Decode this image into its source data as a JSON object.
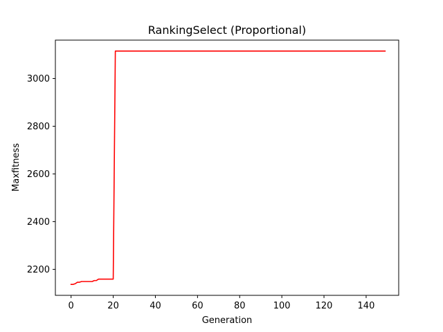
{
  "chart_data": {
    "type": "line",
    "title": "RankingSelect (Proportional)",
    "xlabel": "Generation",
    "ylabel": "Maxfitness",
    "xlim": [
      -7.45,
      155.45
    ],
    "ylim": [
      2091,
      3161
    ],
    "xticks": [
      0,
      20,
      40,
      60,
      80,
      100,
      120,
      140
    ],
    "yticks": [
      2200,
      2400,
      2600,
      2800,
      3000
    ],
    "grid": false,
    "series": [
      {
        "color": "#ff0000",
        "x": [
          0,
          1,
          2,
          3,
          4,
          5,
          6,
          7,
          8,
          9,
          10,
          11,
          12,
          13,
          14,
          15,
          16,
          17,
          18,
          19,
          20,
          21,
          149
        ],
        "y": [
          2137,
          2137,
          2140,
          2146,
          2146,
          2149,
          2149,
          2149,
          2149,
          2149,
          2149,
          2153,
          2153,
          2159,
          2159,
          2159,
          2159,
          2159,
          2159,
          2159,
          2159,
          3115,
          3115
        ]
      }
    ]
  }
}
